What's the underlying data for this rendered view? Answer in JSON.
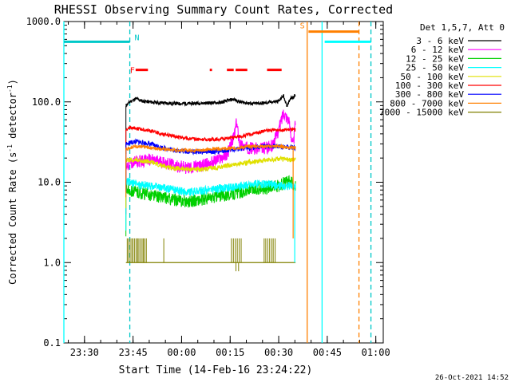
{
  "chart_data": {
    "type": "line",
    "title": "RHESSI Observing Summary Count Rates, Corrected",
    "xlabel": "Start Time (14-Feb-16 23:24:22)",
    "ylabel_parts": [
      "Corrected Count Rate (s",
      "-1",
      " detector",
      "-1",
      ")"
    ],
    "y_scale": "log",
    "ylim": [
      0.1,
      1000
    ],
    "y_ticks": [
      {
        "value": 0.1,
        "label": "0.1"
      },
      {
        "value": 1,
        "label": "1.0"
      },
      {
        "value": 10,
        "label": "10.0"
      },
      {
        "value": 100,
        "label": "100.0"
      },
      {
        "value": 1000,
        "label": "1000.0"
      }
    ],
    "xlim_minutes": [
      -6.37,
      92.3
    ],
    "x_ticks": [
      {
        "value": 0,
        "label": "23:30"
      },
      {
        "value": 15,
        "label": "23:45"
      },
      {
        "value": 30,
        "label": "00:00"
      },
      {
        "value": 45,
        "label": "00:15"
      },
      {
        "value": 60,
        "label": "00:30"
      },
      {
        "value": 75,
        "label": "00:45"
      },
      {
        "value": 90,
        "label": "01:00"
      }
    ],
    "legend_title": "Det 1,5,7, Att 0",
    "legend_position": "right",
    "series": [
      {
        "name": "3 - 6 keV",
        "color": "#000000",
        "x": [
          12.8,
          14,
          16,
          18,
          22,
          26,
          30,
          34,
          38,
          42,
          44,
          46,
          48,
          52,
          56,
          58,
          60,
          61.5,
          62.5,
          63.5,
          65.2
        ],
        "y": [
          90,
          100,
          110,
          102,
          98,
          96,
          95,
          96,
          97,
          98,
          103,
          108,
          100,
          95,
          97,
          100,
          102,
          120,
          88,
          110,
          120
        ]
      },
      {
        "name": "6 - 12 keV",
        "color": "#ff00ff",
        "x": [
          12.8,
          14,
          16,
          20,
          24,
          28,
          32,
          36,
          40,
          44,
          46,
          47,
          48,
          50,
          54,
          58,
          60,
          61.5,
          63,
          64.5,
          65.2
        ],
        "y": [
          16,
          17,
          18,
          19,
          18,
          16,
          15,
          16,
          18,
          22,
          35,
          55,
          30,
          27,
          26,
          28,
          45,
          75,
          60,
          28,
          60
        ]
      },
      {
        "name": "12 - 25 keV",
        "color": "#00d000",
        "x": [
          12.8,
          14,
          16,
          20,
          24,
          28,
          32,
          36,
          40,
          44,
          48,
          52,
          56,
          60,
          62,
          64,
          65.2
        ],
        "y": [
          8.5,
          8,
          7.5,
          7,
          6.5,
          6,
          5.8,
          6,
          6.5,
          7,
          7.5,
          8,
          8.5,
          9,
          10,
          10,
          9
        ]
      },
      {
        "name": "25 - 50 keV",
        "color": "#00ffff",
        "x": [
          12.8,
          14,
          16,
          20,
          24,
          28,
          32,
          36,
          40,
          44,
          48,
          52,
          56,
          60,
          64,
          65.2
        ],
        "y": [
          10,
          10,
          9.5,
          9,
          8.5,
          8,
          7.5,
          7.8,
          8.2,
          8.5,
          9,
          9.5,
          9.5,
          9,
          9,
          9
        ]
      },
      {
        "name": "50 - 100 keV",
        "color": "#e0e000",
        "x": [
          12.8,
          14,
          16,
          20,
          24,
          28,
          32,
          36,
          40,
          44,
          48,
          52,
          56,
          60,
          64,
          65.2
        ],
        "y": [
          19,
          19,
          19,
          18,
          16,
          15,
          14.5,
          14.5,
          15,
          16,
          17,
          18,
          19,
          19.5,
          19,
          19
        ]
      },
      {
        "name": "100 - 300 keV",
        "color": "#ff0000",
        "x": [
          12.8,
          14,
          16,
          20,
          24,
          28,
          32,
          36,
          40,
          44,
          48,
          52,
          56,
          60,
          64,
          65.2
        ],
        "y": [
          45,
          48,
          47,
          44,
          40,
          37,
          35,
          34,
          34,
          35,
          37,
          40,
          44,
          45,
          45,
          45
        ]
      },
      {
        "name": "300 - 800 keV",
        "color": "#0000ff",
        "x": [
          12.8,
          14,
          16,
          20,
          24,
          28,
          32,
          36,
          40,
          44,
          48,
          52,
          56,
          60,
          64,
          65.2
        ],
        "y": [
          30,
          31,
          32,
          30,
          27,
          25,
          24,
          24,
          24,
          25,
          26,
          27,
          28,
          28,
          27,
          27
        ]
      },
      {
        "name": "800 - 7000 keV",
        "color": "#ff8000",
        "x": [
          12.8,
          14,
          16,
          20,
          24,
          28,
          32,
          36,
          40,
          44,
          48,
          52,
          56,
          60,
          64,
          65.2
        ],
        "y": [
          26,
          27,
          28,
          27,
          26,
          25,
          25,
          25,
          26,
          26,
          27,
          28,
          28,
          28,
          27,
          27
        ]
      },
      {
        "name": "7000 - 15000 keV",
        "color": "#808000",
        "x": [
          12.8,
          65.2
        ],
        "y": [
          1,
          1
        ]
      }
    ],
    "olive_spikes_x": [
      13.2,
      13.6,
      14.1,
      14.6,
      15.0,
      15.5,
      16.0,
      16.4,
      16.8,
      17.3,
      17.8,
      18.2,
      18.6,
      19.1,
      24.5,
      45.4,
      46.0,
      46.6,
      47.2,
      47.8,
      48.4,
      55.5,
      56.0,
      56.6,
      57.2,
      57.8,
      58.3,
      58.9
    ],
    "olive_spike_top": 2.0,
    "olive_dip": {
      "x": [
        46.8,
        47.6
      ],
      "y": 0.78
    },
    "left_panel_line_color": "#00ffff",
    "flags": [
      {
        "label": "N",
        "color": "#00c8c8",
        "x_label": 16.2,
        "segments": [
          [
            -6.37,
            14.0
          ]
        ],
        "y": 560
      },
      {
        "label": "F",
        "color": "#ff0000",
        "x_label": 14.8,
        "segments": [
          [
            15.8,
            19.6
          ],
          [
            38.7,
            39.4
          ],
          [
            44.0,
            46.1
          ],
          [
            46.7,
            50.3
          ],
          [
            56.4,
            60.9
          ]
        ],
        "y": 250
      },
      {
        "label": "S",
        "color": "#ff8000",
        "x_label": 67.3,
        "segments": [
          [
            69.2,
            84.8
          ]
        ],
        "y": 750
      },
      {
        "label": "",
        "color": "#00ffff",
        "x_label": 0,
        "segments": [
          [
            74.2,
            88.5
          ]
        ],
        "y": 560
      }
    ],
    "vlines": [
      {
        "x": -6.37,
        "color": "#00ffff",
        "style": "solid"
      },
      {
        "x": 14.0,
        "color": "#00c8c8",
        "style": "dashed"
      },
      {
        "x": 68.8,
        "color": "#ff8000",
        "style": "solid"
      },
      {
        "x": 73.4,
        "color": "#00ffff",
        "style": "solid"
      },
      {
        "x": 84.8,
        "color": "#ff8000",
        "style": "dashed"
      },
      {
        "x": 88.5,
        "color": "#00c8c8",
        "style": "dashed"
      }
    ]
  },
  "footer": {
    "timestamp": "26-Oct-2021 14:52"
  }
}
